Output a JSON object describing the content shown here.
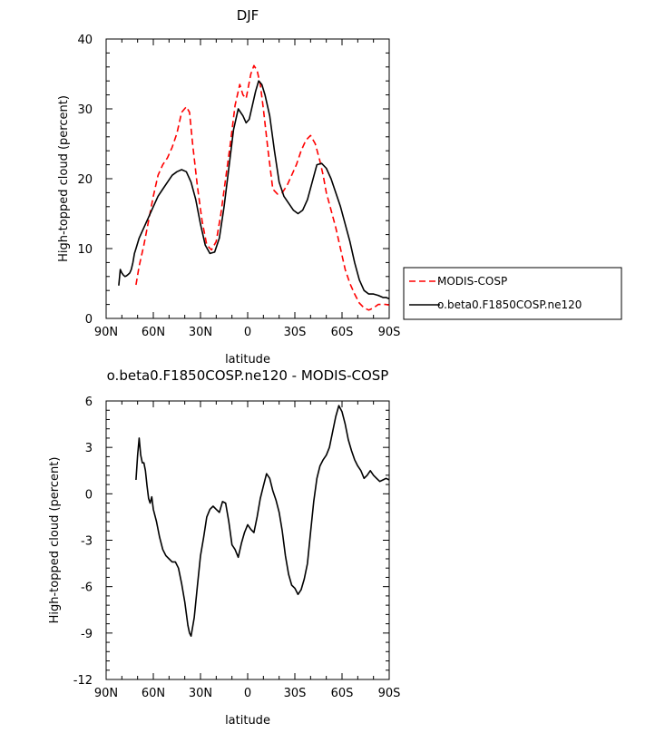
{
  "chart_data": [
    {
      "type": "line",
      "title": "DJF",
      "xlabel": "latitude",
      "ylabel": "High-topped cloud (percent)",
      "xlim": [
        90,
        -90
      ],
      "ylim": [
        0,
        40
      ],
      "x_ticks": [
        90,
        60,
        30,
        0,
        -30,
        -60,
        -90
      ],
      "x_tick_labels": [
        "90N",
        "60N",
        "30N",
        "0",
        "30S",
        "60S",
        "90S"
      ],
      "y_ticks": [
        0,
        10,
        20,
        30,
        40
      ],
      "y_tick_labels": [
        "0",
        "10",
        "20",
        "30",
        "40"
      ],
      "legend": {
        "position": "right",
        "entries": [
          "MODIS-COSP",
          "o.beta0.F1850COSP.ne120"
        ]
      },
      "series": [
        {
          "name": "MODIS-COSP",
          "color": "#ff0000",
          "dash": true,
          "x": [
            71,
            69,
            66,
            63,
            60,
            57,
            54,
            51,
            48,
            45,
            42,
            39,
            37,
            35,
            32,
            29,
            26,
            23,
            20,
            17,
            14,
            11,
            8,
            5,
            3,
            1,
            -2,
            -4,
            -6,
            -8,
            -10,
            -13,
            -16,
            -19,
            -22,
            -25,
            -28,
            -31,
            -34,
            -37,
            -40,
            -43,
            -46,
            -48,
            -50,
            -53,
            -56,
            -59,
            -62,
            -65,
            -68,
            -71,
            -74,
            -77,
            -80,
            -83,
            -86,
            -88,
            -90
          ],
          "y": [
            4.8,
            7.5,
            10.5,
            14,
            17.5,
            20.5,
            22,
            23,
            24.5,
            26.5,
            29.5,
            30.3,
            29.5,
            25,
            19,
            14,
            10.5,
            9.8,
            11,
            15,
            20,
            25,
            30.5,
            33.5,
            32,
            31.5,
            35,
            36.2,
            35.5,
            33.5,
            30,
            24,
            18.5,
            17.8,
            18,
            19,
            20.5,
            22,
            24,
            25.5,
            26.2,
            25,
            22.5,
            20.5,
            18,
            15.5,
            13,
            10,
            7,
            5,
            3.5,
            2.2,
            1.5,
            1.2,
            1.5,
            2,
            2,
            2,
            1.9
          ]
        },
        {
          "name": "o.beta0.F1850COSP.ne120",
          "color": "#000000",
          "dash": false,
          "x": [
            82,
            81,
            80,
            79,
            78,
            77,
            76,
            75,
            74,
            73,
            72,
            71,
            69,
            66,
            63,
            60,
            57,
            54,
            51,
            48,
            45,
            42,
            39,
            36,
            33,
            30,
            27,
            24,
            21,
            18,
            15,
            12,
            9,
            6,
            3,
            1,
            -1,
            -3,
            -5,
            -7,
            -9,
            -11,
            -14,
            -17,
            -20,
            -23,
            -26,
            -29,
            -32,
            -35,
            -38,
            -41,
            -44,
            -47,
            -50,
            -53,
            -56,
            -59,
            -62,
            -65,
            -68,
            -71,
            -74,
            -77,
            -80,
            -83,
            -86,
            -88,
            -90
          ],
          "y": [
            4.7,
            7,
            6.5,
            6.2,
            6,
            6.1,
            6.3,
            6.5,
            7,
            8,
            9.3,
            10,
            11.5,
            13,
            14.5,
            16,
            17.5,
            18.5,
            19.5,
            20.5,
            21,
            21.3,
            21,
            19.5,
            17,
            13.5,
            10.5,
            9.3,
            9.5,
            11.5,
            16,
            21.5,
            27,
            30,
            29,
            28,
            28.5,
            30.5,
            32.5,
            34,
            33.5,
            32,
            29,
            24,
            19.5,
            17.5,
            16.5,
            15.5,
            15,
            15.5,
            17,
            19.5,
            22,
            22.2,
            21.5,
            20,
            18,
            16,
            13.5,
            11,
            8,
            5.5,
            4,
            3.5,
            3.5,
            3.3,
            3,
            3,
            2.8
          ]
        }
      ]
    },
    {
      "type": "line",
      "title": "o.beta0.F1850COSP.ne120 - MODIS-COSP",
      "xlabel": "latitude",
      "ylabel": "High-topped cloud (percent)",
      "xlim": [
        90,
        -90
      ],
      "ylim": [
        -12,
        6
      ],
      "x_ticks": [
        90,
        60,
        30,
        0,
        -30,
        -60,
        -90
      ],
      "x_tick_labels": [
        "90N",
        "60N",
        "30N",
        "0",
        "30S",
        "60S",
        "90S"
      ],
      "y_ticks": [
        -12,
        -9,
        -6,
        -3,
        0,
        3,
        6
      ],
      "y_tick_labels": [
        "-12",
        "-9",
        "-6",
        "-3",
        "0",
        "3",
        "6"
      ],
      "series": [
        {
          "name": "o.beta0.F1850COSP.ne120 - MODIS-COSP",
          "color": "#000000",
          "dash": false,
          "x": [
            71,
            70,
            69,
            68,
            67,
            66,
            65,
            64,
            63,
            62,
            61,
            60,
            58,
            56,
            54,
            52,
            50,
            48,
            46,
            44,
            42,
            40,
            38,
            37,
            36,
            34,
            32,
            30,
            28,
            26,
            24,
            22,
            20,
            18,
            16,
            14,
            12,
            10,
            8,
            6,
            4,
            2,
            0,
            -2,
            -4,
            -6,
            -8,
            -10,
            -12,
            -14,
            -16,
            -18,
            -20,
            -22,
            -24,
            -26,
            -28,
            -30,
            -32,
            -34,
            -36,
            -38,
            -40,
            -42,
            -44,
            -46,
            -48,
            -50,
            -52,
            -54,
            -56,
            -58,
            -60,
            -62,
            -64,
            -66,
            -68,
            -70,
            -72,
            -74,
            -76,
            -78,
            -80,
            -82,
            -84,
            -86,
            -88,
            -90
          ],
          "y": [
            0.9,
            2.5,
            3.6,
            2.5,
            2,
            2,
            1.5,
            0.5,
            -0.3,
            -0.6,
            -0.2,
            -1,
            -1.8,
            -2.8,
            -3.6,
            -4,
            -4.2,
            -4.4,
            -4.4,
            -4.8,
            -5.8,
            -7,
            -8.5,
            -9,
            -9.2,
            -8,
            -6,
            -4,
            -2.8,
            -1.5,
            -1,
            -0.8,
            -1,
            -1.2,
            -0.5,
            -0.6,
            -1.8,
            -3.3,
            -3.6,
            -4.1,
            -3.2,
            -2.5,
            -2,
            -2.3,
            -2.5,
            -1.5,
            -0.3,
            0.5,
            1.3,
            1,
            0.2,
            -0.4,
            -1.2,
            -2.4,
            -4,
            -5.2,
            -5.9,
            -6.1,
            -6.5,
            -6.2,
            -5.5,
            -4.5,
            -2.5,
            -0.5,
            1,
            1.8,
            2.2,
            2.5,
            3,
            4,
            5,
            5.7,
            5.3,
            4.5,
            3.5,
            2.8,
            2.2,
            1.8,
            1.5,
            1,
            1.2,
            1.5,
            1.2,
            1,
            0.8,
            0.9,
            1,
            0.9
          ]
        }
      ]
    }
  ]
}
